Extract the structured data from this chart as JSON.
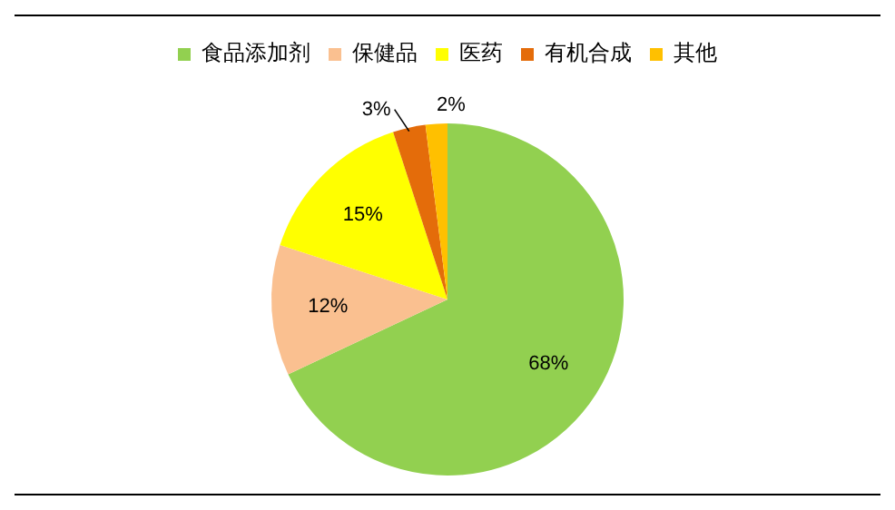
{
  "chart_data": {
    "type": "pie",
    "categories": [
      "食品添加剂",
      "保健品",
      "医药",
      "有机合成",
      "其他"
    ],
    "values": [
      68,
      12,
      15,
      3,
      2
    ],
    "colors": [
      "#92d050",
      "#fac090",
      "#ffff00",
      "#e46c0a",
      "#ffc000"
    ],
    "value_labels": [
      "68%",
      "12%",
      "15%",
      "3%",
      "2%"
    ],
    "legend": "top"
  }
}
